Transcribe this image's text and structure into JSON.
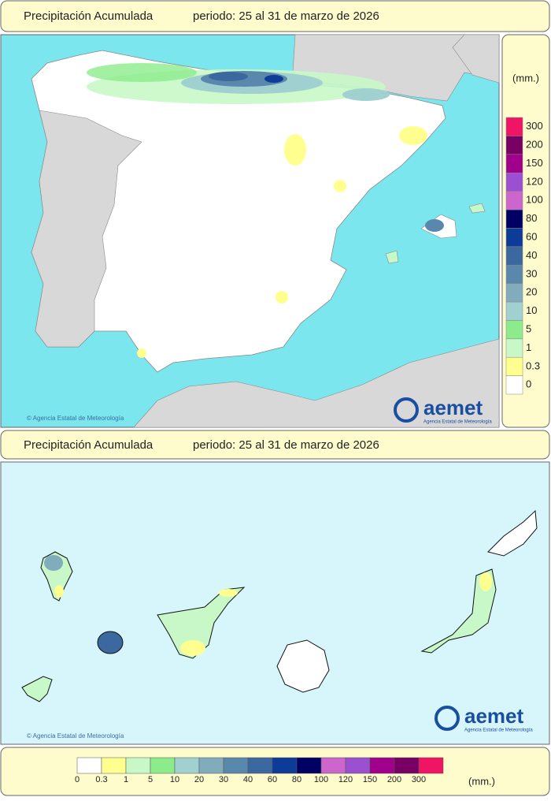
{
  "header": {
    "title": "Precipitación Acumulada",
    "period": "periodo: 25 al 31 de marzo de 2026"
  },
  "header2": {
    "title": "Precipitación Acumulada",
    "period": "periodo: 25 al 31 de marzo de 2026"
  },
  "legend": {
    "unit": "(mm.)",
    "classes": [
      {
        "label": "0",
        "color": "#ffffff"
      },
      {
        "label": "0.3",
        "color": "#ffff90"
      },
      {
        "label": "1",
        "color": "#c8f8c8"
      },
      {
        "label": "5",
        "color": "#8cec8c"
      },
      {
        "label": "10",
        "color": "#a0d0d0"
      },
      {
        "label": "20",
        "color": "#80acbc"
      },
      {
        "label": "30",
        "color": "#5a88ac"
      },
      {
        "label": "40",
        "color": "#3c68a0"
      },
      {
        "label": "60",
        "color": "#0c3c98"
      },
      {
        "label": "80",
        "color": "#000064"
      },
      {
        "label": "100",
        "color": "#cc66cc"
      },
      {
        "label": "120",
        "color": "#9a50d0"
      },
      {
        "label": "150",
        "color": "#a0008c"
      },
      {
        "label": "200",
        "color": "#780064"
      },
      {
        "label": "300",
        "color": "#f01464"
      }
    ]
  },
  "map1": {
    "credit": "© Agencia Estatal de Meteorología",
    "logo": "aemet",
    "logo_sub": "Agencia Estatal de Meteorología"
  },
  "map2": {
    "credit": "© Agencia Estatal de Meteorología",
    "logo": "aemet",
    "logo_sub": "Agencia Estatal de Meteorología"
  }
}
